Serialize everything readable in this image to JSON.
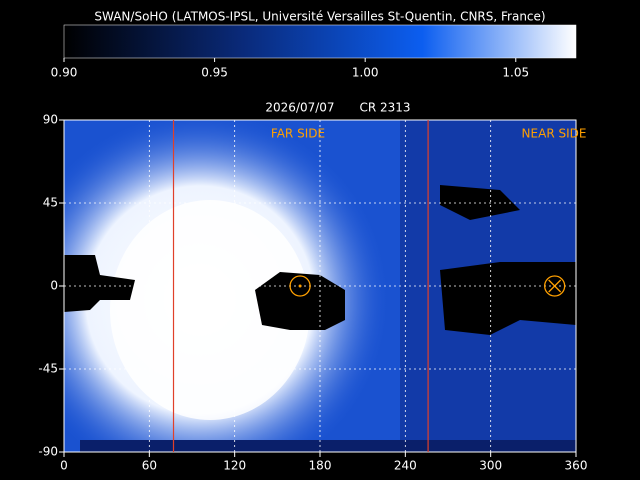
{
  "chart_data": {
    "type": "heatmap",
    "title": "SWAN/SoHO (LATMOS-IPSL, Université Versailles St-Quentin, CNRS, France)",
    "date": "2026/07/07",
    "rotation": "CR 2313",
    "far_side_label": "FAR SIDE",
    "near_side_label": "NEAR SIDE",
    "colorbar": {
      "lim": [
        0.9,
        1.07
      ],
      "ticks": [
        {
          "value": 0.9,
          "label": "0.90"
        },
        {
          "value": 0.95,
          "label": "0.95"
        },
        {
          "value": 1.0,
          "label": "1.00"
        },
        {
          "value": 1.05,
          "label": "1.05"
        }
      ]
    },
    "xlim": [
      0,
      360
    ],
    "xticks": [
      0,
      60,
      120,
      180,
      240,
      300,
      360
    ],
    "ylim": [
      -90,
      90
    ],
    "yticks": [
      90,
      45,
      0,
      -45,
      -90
    ],
    "far_side_bounds": [
      77,
      256
    ],
    "sun_marker": [
      166,
      0
    ],
    "earth_marker": [
      345,
      0
    ],
    "grid": true
  }
}
